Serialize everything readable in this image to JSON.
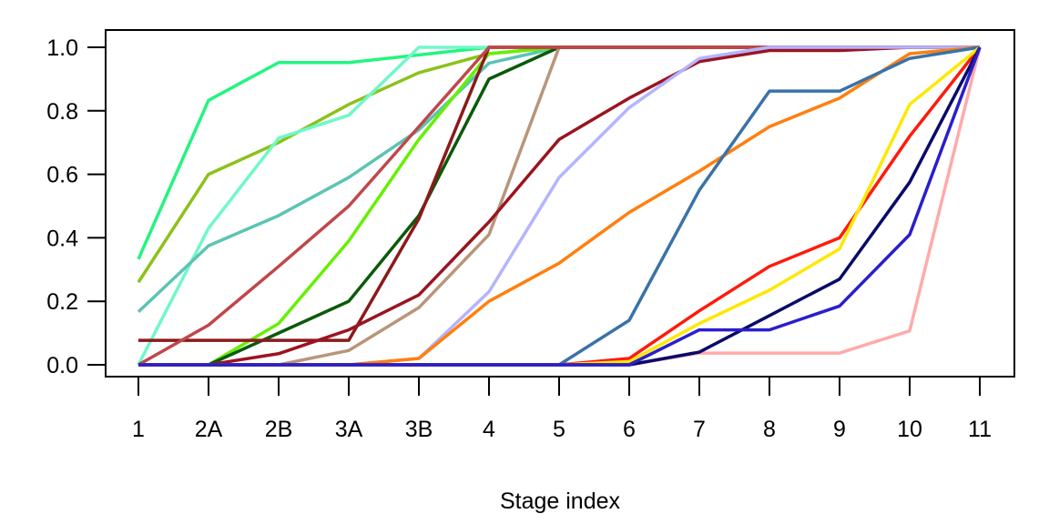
{
  "chart_data": {
    "type": "line",
    "title": "",
    "xlabel": "Stage index",
    "ylabel": "",
    "categories": [
      "1",
      "2A",
      "2B",
      "3A",
      "3B",
      "4",
      "5",
      "6",
      "7",
      "8",
      "9",
      "10",
      "11"
    ],
    "yticks": [
      "0.0",
      "0.2",
      "0.4",
      "0.6",
      "0.8",
      "1.0"
    ],
    "ylim": [
      0,
      1
    ],
    "grid": false,
    "series": [
      {
        "color": "#22F57F",
        "values": [
          0.333,
          0.833,
          0.952,
          0.952,
          0.976,
          1,
          1,
          1,
          1,
          1,
          1,
          1,
          1
        ]
      },
      {
        "color": "#8BC21A",
        "values": [
          0.26,
          0.6,
          0.7,
          0.82,
          0.92,
          0.98,
          1,
          1,
          1,
          1,
          1,
          1,
          1
        ]
      },
      {
        "color": "#70F8C8",
        "values": [
          0,
          0.43,
          0.714,
          0.786,
          1,
          1,
          1,
          1,
          1,
          1,
          1,
          1,
          1
        ]
      },
      {
        "color": "#5BC4B4",
        "values": [
          0.167,
          0.375,
          0.47,
          0.59,
          0.74,
          0.95,
          1,
          1,
          1,
          1,
          1,
          1,
          1
        ]
      },
      {
        "color": "#66F000",
        "values": [
          0,
          0,
          0.13,
          0.39,
          0.71,
          0.98,
          1,
          1,
          1,
          1,
          1,
          1,
          1
        ]
      },
      {
        "color": "#0A5A0A",
        "values": [
          0,
          0,
          0.1,
          0.2,
          0.47,
          0.9,
          1,
          1,
          1,
          1,
          1,
          1,
          1
        ]
      },
      {
        "color": "#B8957A",
        "values": [
          0,
          0,
          0,
          0.045,
          0.18,
          0.41,
          1,
          1,
          1,
          1,
          1,
          1,
          1
        ]
      },
      {
        "color": "#8B1A1A",
        "values": [
          0.077,
          0.077,
          0.077,
          0.077,
          0.46,
          1,
          1,
          1,
          1,
          1,
          1,
          1,
          1
        ]
      },
      {
        "color": "#C0474A",
        "values": [
          0,
          0.125,
          0.31,
          0.5,
          0.75,
          1,
          1,
          1,
          1,
          1,
          1,
          1,
          1
        ]
      },
      {
        "color": "#9B1420",
        "values": [
          0,
          0,
          0.035,
          0.11,
          0.22,
          0.45,
          0.71,
          0.84,
          0.955,
          0.99,
          0.99,
          1,
          1
        ]
      },
      {
        "color": "#B4B4FF",
        "values": [
          0,
          0,
          0,
          0,
          0.02,
          0.23,
          0.59,
          0.81,
          0.965,
          1,
          1,
          1,
          1
        ]
      },
      {
        "color": "#FF7F0E",
        "values": [
          0,
          0,
          0,
          0,
          0.02,
          0.2,
          0.32,
          0.48,
          0.61,
          0.75,
          0.84,
          0.98,
          1
        ]
      },
      {
        "color": "#3A72A8",
        "values": [
          0,
          0,
          0,
          0,
          0,
          0,
          0,
          0.14,
          0.55,
          0.862,
          0.862,
          0.965,
          1
        ]
      },
      {
        "color": "#FFAAAA",
        "values": [
          0,
          0,
          0,
          0,
          0,
          0,
          0,
          0,
          0.037,
          0.037,
          0.037,
          0.107,
          1
        ]
      },
      {
        "color": "#FF1A0A",
        "values": [
          0,
          0,
          0,
          0,
          0,
          0,
          0,
          0.02,
          0.17,
          0.31,
          0.4,
          0.72,
          1
        ]
      },
      {
        "color": "#FFE800",
        "values": [
          0,
          0,
          0,
          0,
          0,
          0,
          0,
          0.01,
          0.13,
          0.235,
          0.365,
          0.82,
          1
        ]
      },
      {
        "color": "#0A0A6A",
        "values": [
          0,
          0,
          0,
          0,
          0,
          0,
          0,
          0,
          0.04,
          0.155,
          0.27,
          0.575,
          1
        ]
      },
      {
        "color": "#2A1ECC",
        "values": [
          0,
          0,
          0,
          0,
          0,
          0,
          0,
          0,
          0.11,
          0.11,
          0.185,
          0.41,
          1
        ]
      }
    ]
  }
}
